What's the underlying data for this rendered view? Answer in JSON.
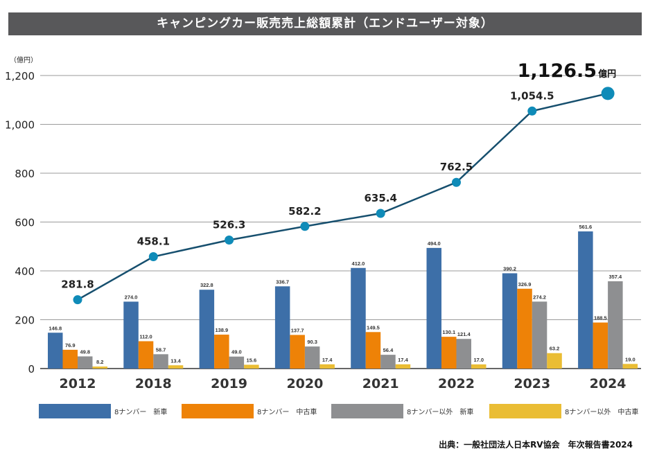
{
  "title": "キャンピングカー販売売上総額累計（エンドユーザー対象）",
  "unit_label": "（億円）",
  "source": "出典：一般社団法人日本RV協会　年次報告書2024",
  "chart_data": {
    "type": "bar+line",
    "title": "キャンピングカー販売売上総額累計（エンドユーザー対象）",
    "ylabel": "（億円）",
    "ylim": [
      0,
      1200
    ],
    "yticks": [
      "0",
      "200",
      "400",
      "600",
      "800",
      "1,000",
      "1,200"
    ],
    "grid": true,
    "legend_position": "bottom",
    "categories": [
      "2012",
      "2018",
      "2019",
      "2020",
      "2021",
      "2022",
      "2023",
      "2024"
    ],
    "series": [
      {
        "name": "8ナンバー　新車",
        "color": "#3d6fa8",
        "values": [
          146.8,
          274.0,
          322.8,
          336.7,
          412.0,
          494.0,
          390.2,
          561.6
        ]
      },
      {
        "name": "8ナンバー　中古車",
        "color": "#ee8207",
        "values": [
          76.9,
          112.0,
          138.9,
          137.7,
          149.5,
          130.1,
          326.9,
          188.5
        ]
      },
      {
        "name": "8ナンバー以外　新車",
        "color": "#8e8f91",
        "values": [
          49.8,
          58.7,
          49.0,
          90.3,
          56.4,
          121.4,
          274.2,
          357.4
        ]
      },
      {
        "name": "8ナンバー以外　中古車",
        "color": "#eabd34",
        "values": [
          8.2,
          13.4,
          15.6,
          17.4,
          17.4,
          17.0,
          63.2,
          19.0
        ]
      }
    ],
    "total": {
      "type": "line",
      "color": "#0f8bb8",
      "line_color": "#164f6e",
      "values": [
        281.8,
        458.1,
        526.3,
        582.2,
        635.4,
        762.5,
        1054.5,
        1126.5
      ],
      "labels": [
        "281.8",
        "458.1",
        "526.3",
        "582.2",
        "635.4",
        "762.5",
        "1,054.5",
        "1,126.5"
      ],
      "last_unit": "億円"
    }
  }
}
